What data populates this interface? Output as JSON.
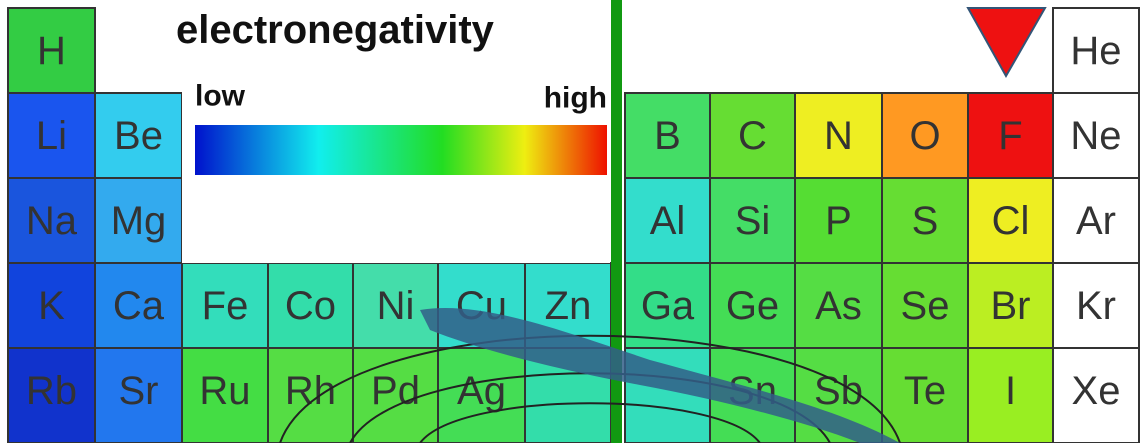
{
  "title": "electronegativity",
  "scale": {
    "low": "low",
    "high": "high"
  },
  "rows": [
    [
      {
        "symbol": "H",
        "color": "#33cc44"
      },
      null,
      null,
      null,
      null,
      null,
      null,
      null,
      null,
      null,
      null,
      null,
      {
        "symbol": "He",
        "color": "#ffffff"
      }
    ],
    [
      {
        "symbol": "Li",
        "color": "#1a55ee"
      },
      {
        "symbol": "Be",
        "color": "#33ccee"
      },
      null,
      null,
      null,
      null,
      null,
      {
        "symbol": "B",
        "color": "#44dd66"
      },
      {
        "symbol": "C",
        "color": "#66dd33"
      },
      {
        "symbol": "N",
        "color": "#eeee22"
      },
      {
        "symbol": "O",
        "color": "#ff9922"
      },
      {
        "symbol": "F",
        "color": "#ee1111"
      },
      {
        "symbol": "Ne",
        "color": "#ffffff"
      }
    ],
    [
      {
        "symbol": "Na",
        "color": "#1a55dd"
      },
      {
        "symbol": "Mg",
        "color": "#33aaee"
      },
      null,
      null,
      null,
      null,
      null,
      {
        "symbol": "Al",
        "color": "#33ddcc"
      },
      {
        "symbol": "Si",
        "color": "#44dd66"
      },
      {
        "symbol": "P",
        "color": "#55dd33"
      },
      {
        "symbol": "S",
        "color": "#66dd33"
      },
      {
        "symbol": "Cl",
        "color": "#eeee22"
      },
      {
        "symbol": "Ar",
        "color": "#ffffff"
      }
    ],
    [
      {
        "symbol": "K",
        "color": "#1144dd"
      },
      {
        "symbol": "Ca",
        "color": "#2288ee"
      },
      {
        "symbol": "Fe",
        "color": "#33ddbb"
      },
      {
        "symbol": "Co",
        "color": "#33ddaa"
      },
      {
        "symbol": "Ni",
        "color": "#44ddaa"
      },
      {
        "symbol": "Cu",
        "color": "#33ddcc"
      },
      {
        "symbol": "Zn",
        "color": "#33ddcc"
      },
      {
        "symbol": "Ga",
        "color": "#33dd88"
      },
      {
        "symbol": "Ge",
        "color": "#44dd55"
      },
      {
        "symbol": "As",
        "color": "#55dd44"
      },
      {
        "symbol": "Se",
        "color": "#66dd33"
      },
      {
        "symbol": "Br",
        "color": "#bbee22"
      },
      {
        "symbol": "Kr",
        "color": "#ffffff"
      }
    ],
    [
      {
        "symbol": "Rb",
        "color": "#1133cc"
      },
      {
        "symbol": "Sr",
        "color": "#2277ee"
      },
      {
        "symbol": "Ru",
        "color": "#44dd44"
      },
      {
        "symbol": "Rh",
        "color": "#55dd44"
      },
      {
        "symbol": "Pd",
        "color": "#55dd44"
      },
      {
        "symbol": "Ag",
        "color": "#44dd55"
      },
      {
        "color": "#33ddaa"
      },
      {
        "color": "#33ddbb"
      },
      {
        "symbol": "Sn",
        "color": "#44dd55"
      },
      {
        "symbol": "Sb",
        "color": "#55dd44"
      },
      {
        "symbol": "Te",
        "color": "#66dd33"
      },
      {
        "symbol": "I",
        "color": "#99ee22"
      },
      {
        "symbol": "Xe",
        "color": "#ffffff"
      }
    ]
  ]
}
